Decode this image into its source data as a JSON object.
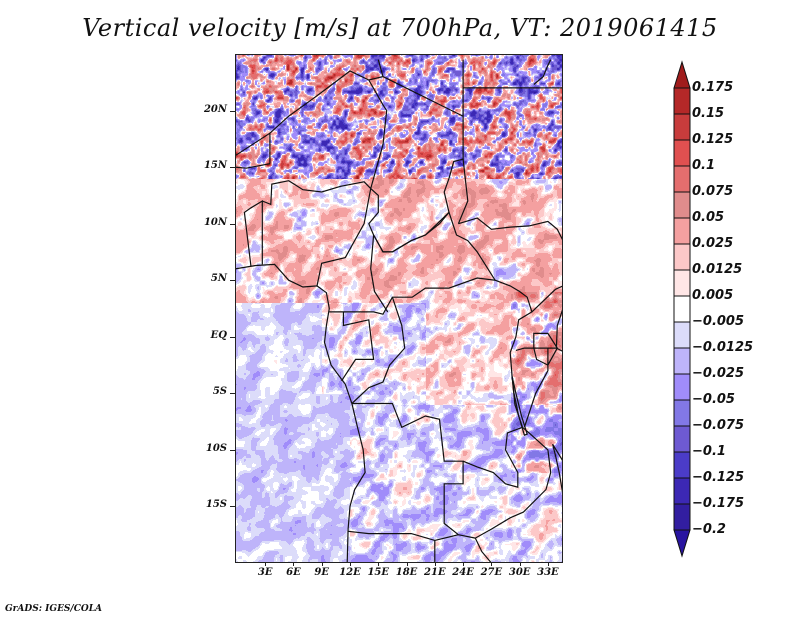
{
  "title": "Vertical velocity [m/s] at 700hPa, VT: 2019061415",
  "credit": "GrADS: IGES/COLA",
  "map": {
    "variable": "Vertical velocity",
    "units": "m/s",
    "level": "700hPa",
    "valid_time": "2019061415",
    "lon_range": [
      -0.2,
      34.6
    ],
    "lat_range": [
      -20,
      25
    ],
    "y_axis_labels": [
      {
        "label": "20N",
        "lat": 20
      },
      {
        "label": "15N",
        "lat": 15
      },
      {
        "label": "10N",
        "lat": 10
      },
      {
        "label": "5N",
        "lat": 5
      },
      {
        "label": "EQ",
        "lat": 0
      },
      {
        "label": "5S",
        "lat": -5
      },
      {
        "label": "10S",
        "lat": -10
      },
      {
        "label": "15S",
        "lat": -15
      }
    ],
    "x_axis_labels": [
      {
        "label": "3E",
        "lon": 3
      },
      {
        "label": "6E",
        "lon": 6
      },
      {
        "label": "9E",
        "lon": 9
      },
      {
        "label": "12E",
        "lon": 12
      },
      {
        "label": "15E",
        "lon": 15
      },
      {
        "label": "18E",
        "lon": 18
      },
      {
        "label": "21E",
        "lon": 21
      },
      {
        "label": "24E",
        "lon": 24
      },
      {
        "label": "27E",
        "lon": 27
      },
      {
        "label": "30E",
        "lon": 30
      },
      {
        "label": "33E",
        "lon": 33
      }
    ]
  },
  "colorbar": {
    "labels": [
      "0.175",
      "0.15",
      "0.125",
      "0.1",
      "0.075",
      "0.05",
      "0.025",
      "0.0125",
      "0.005",
      "−0.005",
      "−0.0125",
      "−0.025",
      "−0.05",
      "−0.075",
      "−0.1",
      "−0.125",
      "−0.175",
      "−0.2"
    ],
    "levels": [
      0.175,
      0.15,
      0.125,
      0.1,
      0.075,
      0.05,
      0.025,
      0.0125,
      0.005,
      -0.005,
      -0.0125,
      -0.025,
      -0.05,
      -0.075,
      -0.1,
      -0.125,
      -0.175,
      -0.2
    ],
    "colors": [
      "#a01c1c",
      "#b42828",
      "#c83c3c",
      "#e05050",
      "#e46e6e",
      "#e08c8c",
      "#f4a0a0",
      "#fcc8c8",
      "#ffe6e6",
      "#ffffff",
      "#dcdcfa",
      "#beb4fa",
      "#a08cfa",
      "#8278e6",
      "#6e5ad2",
      "#4b3cc8",
      "#3c28b4",
      "#321ea0",
      "#2814a0"
    ],
    "extend": "both"
  }
}
